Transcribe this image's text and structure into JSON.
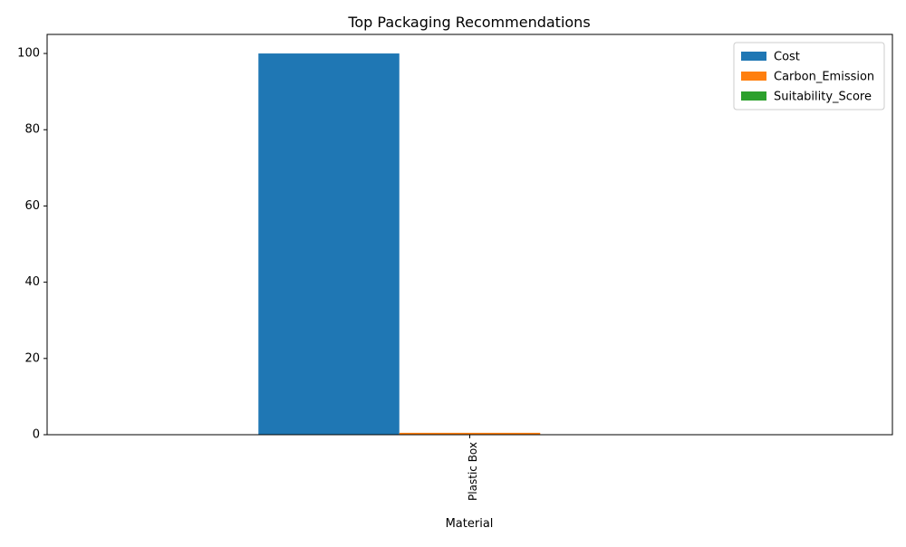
{
  "chart_data": {
    "type": "bar",
    "title": "Top Packaging Recommendations",
    "xlabel": "Material",
    "ylabel": "",
    "categories": [
      "Plastic Box"
    ],
    "series": [
      {
        "name": "Cost",
        "values": [
          100
        ],
        "color": "#1f77b4"
      },
      {
        "name": "Carbon_Emission",
        "values": [
          0.5
        ],
        "color": "#ff7f0e"
      },
      {
        "name": "Suitability_Score",
        "values": [
          0
        ],
        "color": "#2ca02c"
      }
    ],
    "ylim": [
      0,
      105
    ],
    "yticks": [
      0,
      20,
      40,
      60,
      80,
      100
    ],
    "grid": false,
    "legend_position": "top-right"
  }
}
